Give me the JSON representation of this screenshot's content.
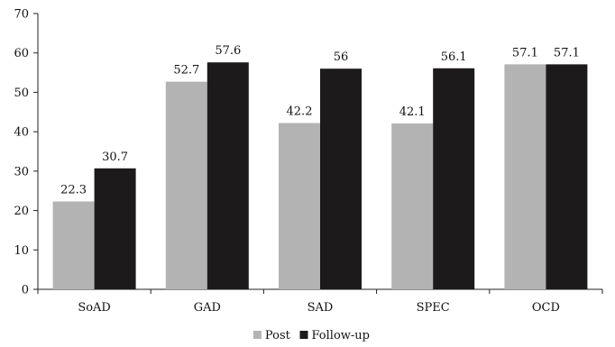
{
  "chart_data": {
    "type": "bar",
    "title": "",
    "xlabel": "",
    "ylabel": "",
    "categories": [
      "SoAD",
      "GAD",
      "SAD",
      "SPEC",
      "OCD"
    ],
    "series": [
      {
        "name": "Post",
        "values": [
          22.3,
          52.7,
          42.2,
          42.1,
          57.1
        ],
        "color": "#b3b3b3",
        "labels": [
          "22.3",
          "52.7",
          "42.2",
          "42.1",
          "57.1"
        ]
      },
      {
        "name": "Follow-up",
        "values": [
          30.7,
          57.6,
          56,
          56.1,
          57.1
        ],
        "color": "#1c1a1a",
        "labels": [
          "30.7",
          "57.6",
          "56",
          "56.1",
          "57.1"
        ]
      }
    ],
    "ylim": [
      0,
      70
    ],
    "yticks": [
      0,
      10,
      20,
      30,
      40,
      50,
      60,
      70
    ],
    "ytick_labels": [
      "0",
      "10",
      "20",
      "30",
      "40",
      "50",
      "60",
      "70"
    ],
    "grid": false,
    "legend_position": "bottom-center"
  }
}
